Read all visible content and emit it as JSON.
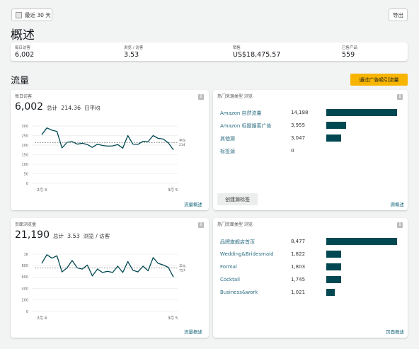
{
  "toolbar": {
    "date_label": "最近 30 天",
    "export_label": "导出"
  },
  "overview": {
    "title": "概述",
    "stats": [
      {
        "label": "每日访客",
        "value": "6,002"
      },
      {
        "label": "浏览 / 访客",
        "value": "3.53"
      },
      {
        "label": "销售",
        "value": "US$18,475.57"
      },
      {
        "label": "已售产品",
        "value": "559"
      }
    ]
  },
  "traffic": {
    "title": "流量",
    "cta_label": "通过广告吸引流量"
  },
  "visitors_card": {
    "label": "每日访客",
    "total": "6,002",
    "total_unit": "总计",
    "avg": "214.36",
    "avg_unit": "日平均",
    "avg_line_label": "平均",
    "footer_link": "流量概述"
  },
  "sources_card": {
    "label": "热门来源类型 浏览",
    "rows": [
      {
        "label": "Amazon 自然流量",
        "value": "14,188",
        "num": 14188
      },
      {
        "label": "Amazon 标题搜索广告",
        "value": "3,955",
        "num": 3955
      },
      {
        "label": "其他源",
        "value": "3,047",
        "num": 3047
      },
      {
        "label": "标签源",
        "value": "0",
        "num": 0
      }
    ],
    "create_button": "创建源标签",
    "footer_link": "源概述"
  },
  "pageviews_card": {
    "label": "页面浏览量",
    "total": "21,190",
    "total_unit": "总计",
    "ratio": "3.53",
    "ratio_unit": "浏览 / 访客",
    "avg_line_label": "平均",
    "footer_link": "流量概述"
  },
  "pages_card": {
    "label": "热门页面类型 浏览",
    "rows": [
      {
        "label": "品牌旗舰店首页",
        "value": "8,477",
        "num": 8477
      },
      {
        "label": "Wedding&Bridesmaid",
        "value": "1,822",
        "num": 1822
      },
      {
        "label": "Formal",
        "value": "1,803",
        "num": 1803
      },
      {
        "label": "Cocktail",
        "value": "1,745",
        "num": 1745
      },
      {
        "label": "Business&work",
        "value": "1,021",
        "num": 1021
      }
    ],
    "footer_link": "页面概述"
  },
  "chart_data": [
    {
      "type": "line",
      "title": "每日访客",
      "x_ticks": [
        "2月 4",
        "3月 5"
      ],
      "y_ticks": [
        "0",
        "50",
        "100",
        "150",
        "200",
        "250",
        "300"
      ],
      "ylim": [
        0,
        300
      ],
      "avg": 214,
      "avg_label": "平均",
      "values": [
        255,
        290,
        278,
        272,
        185,
        215,
        218,
        205,
        210,
        203,
        188,
        205,
        198,
        195,
        196,
        203,
        184,
        250,
        205,
        204,
        220,
        218,
        250,
        235,
        232,
        212,
        175
      ]
    },
    {
      "type": "line",
      "title": "页面浏览量",
      "x_ticks": [
        "2月 4",
        "3月 5"
      ],
      "y_ticks": [
        "0",
        "200",
        "400",
        "600",
        "800",
        "1K"
      ],
      "ylim": [
        0,
        1000
      ],
      "avg": 757,
      "avg_label": "平均",
      "values": [
        840,
        990,
        930,
        970,
        690,
        760,
        890,
        760,
        740,
        810,
        620,
        740,
        680,
        700,
        680,
        790,
        680,
        870,
        720,
        690,
        790,
        710,
        940,
        840,
        810,
        770,
        600
      ]
    }
  ]
}
